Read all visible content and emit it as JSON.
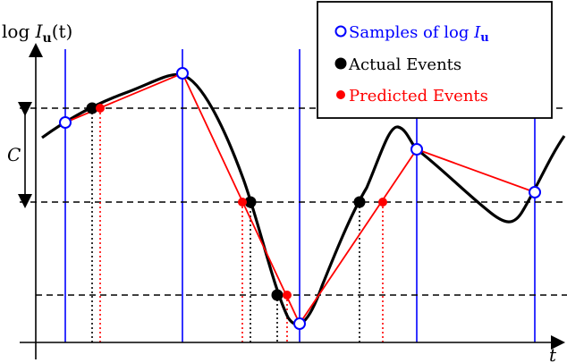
{
  "axes": {
    "y_label": {
      "prefix": "log ",
      "var": "I",
      "sub": "u",
      "suffix": "(t)"
    },
    "x_label": "t",
    "contrast_label": "C"
  },
  "legend": {
    "samples": {
      "prefix": "Samples of log ",
      "var": "I",
      "sub": "u",
      "color": "#0000ff"
    },
    "actual": {
      "label": "Actual Events",
      "color": "#000000"
    },
    "predicted": {
      "label": "Predicted Events",
      "color": "#ff0000"
    }
  },
  "colors": {
    "curve": "#000000",
    "prediction": "#ff0000",
    "sample_lines": "#0000ff",
    "thresholds": "#000000"
  }
}
